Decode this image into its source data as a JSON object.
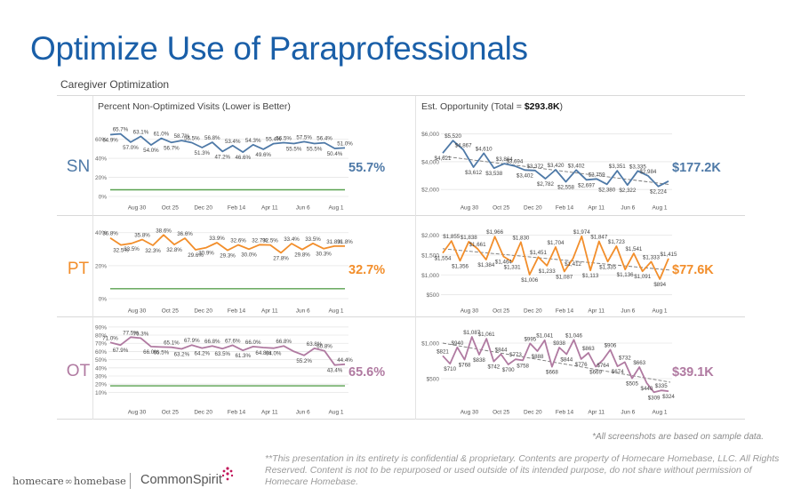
{
  "page": {
    "title": "Optimize Use of Paraprofessionals",
    "subtitle": "Caregiver Optimization",
    "footnote": "*All screenshots are based on sample data.",
    "disclaimer": "**This presentation in its entirety is confidential & proprietary. Contents are property of Homecare Homebase, LLC. All Rights Reserved. Content is not to be repurposed or used outside of its intended purpose, do not share without permission of Homecare Homebase.",
    "logo_left_a": "homecare",
    "logo_left_b": "homebase",
    "logo_right": "CommonSpirit"
  },
  "colors": {
    "SN": "#4e79a7",
    "PT": "#f28e2b",
    "OT": "#b07aa1",
    "target": "#59a14f",
    "grid": "#e6e6e6",
    "trend": "#777777"
  },
  "chart_data": [
    {
      "type": "line",
      "title": "Percent Non-Optimized Visits (Lower is Better)",
      "discipline": "SN",
      "summary": "55.7%",
      "ylim": [
        0,
        70
      ],
      "yticks": [
        "0%",
        "20%",
        "40%",
        "60%"
      ],
      "ytick_values": [
        0,
        20,
        40,
        60
      ],
      "xticks": [
        "Aug 30",
        "Oct 25",
        "Dec 20",
        "Feb 14",
        "Apr 11",
        "Jun 6",
        "Aug 1"
      ],
      "target": 7,
      "values": [
        64.9,
        65.7,
        57.0,
        63.1,
        54.0,
        61.0,
        56.7,
        58.7,
        56.5,
        51.3,
        56.8,
        47.2,
        53.4,
        46.6,
        54.3,
        49.6,
        55.4,
        56.5,
        55.5,
        57.5,
        55.5,
        56.4,
        50.4,
        51.0
      ],
      "labels": [
        "64.9%",
        "65.7%",
        "57.0%",
        "63.1%",
        "54.0%",
        "61.0%",
        "56.7%",
        "58.7%",
        "56.5%",
        "51.3%",
        "56.8%",
        "47.2%",
        "53.4%",
        "46.6%",
        "54.3%",
        "49.6%",
        "55.4%",
        "56.5%",
        "55.5%",
        "57.5%",
        "55.5%",
        "56.4%",
        "50.4%",
        "51.0%"
      ]
    },
    {
      "type": "line",
      "title": "",
      "discipline": "PT",
      "summary": "32.7%",
      "ylim": [
        0,
        42
      ],
      "yticks": [
        "0%",
        "20%",
        "40%"
      ],
      "ytick_values": [
        0,
        20,
        40
      ],
      "xticks": [
        "Aug 30",
        "Oct 25",
        "Dec 20",
        "Feb 14",
        "Apr 11",
        "Jun 6",
        "Aug 1"
      ],
      "target": 6,
      "values": [
        36.8,
        32.5,
        33.5,
        35.8,
        32.3,
        38.6,
        32.8,
        36.6,
        29.6,
        30.9,
        33.9,
        29.3,
        32.6,
        30.0,
        32.7,
        32.5,
        27.8,
        33.4,
        29.8,
        33.5,
        30.3,
        31.8,
        31.8
      ],
      "labels": [
        "36.8%",
        "32.5%",
        "33.5%",
        "35.8%",
        "32.3%",
        "38.6%",
        "32.8%",
        "36.6%",
        "29.6%",
        "30.9%",
        "33.9%",
        "29.3%",
        "32.6%",
        "30.0%",
        "32.7%",
        "32.5%",
        "27.8%",
        "33.4%",
        "29.8%",
        "33.5%",
        "30.3%",
        "31.8%",
        "31.8%"
      ]
    },
    {
      "type": "line",
      "title": "",
      "discipline": "OT",
      "summary": "65.6%",
      "ylim": [
        5,
        92
      ],
      "yticks": [
        "10%",
        "20%",
        "30%",
        "40%",
        "50%",
        "60%",
        "70%",
        "80%",
        "90%"
      ],
      "ytick_values": [
        10,
        20,
        30,
        40,
        50,
        60,
        70,
        80,
        90
      ],
      "xticks": [
        "Aug 30",
        "Oct 25",
        "Dec 20",
        "Feb 14",
        "Apr 11",
        "Jun 6",
        "Aug 1"
      ],
      "target": 18,
      "values": [
        71.0,
        67.9,
        77.5,
        76.3,
        66.0,
        65.5,
        65.1,
        63.2,
        67.9,
        64.2,
        66.8,
        63.5,
        67.6,
        61.3,
        66.0,
        64.8,
        64.0,
        66.8,
        60.0,
        55.2,
        63.8,
        60.8,
        43.4,
        44.4
      ],
      "labels": [
        "71.0%",
        "67.9%",
        "77.5%",
        "76.3%",
        "66.0%",
        "65.5%",
        "65.1%",
        "63.2%",
        "67.9%",
        "64.2%",
        "66.8%",
        "63.5%",
        "67.6%",
        "61.3%",
        "66.0%",
        "64.8%",
        "64.0%",
        "66.8%",
        "",
        "55.2%",
        "63.8%",
        "60.8%",
        "43.4%",
        "44.4%"
      ]
    },
    {
      "type": "line",
      "title_prefix": "Est. Opportunity (Total = ",
      "title_total": "$293.8K",
      "title_suffix": ")",
      "discipline": "SN",
      "summary": "$177.2K",
      "ylim": [
        1500,
        6300
      ],
      "yticks": [
        "$2,000",
        "$4,000",
        "$6,000"
      ],
      "ytick_values": [
        2000,
        4000,
        6000
      ],
      "xticks": [
        "Aug 30",
        "Oct 25",
        "Dec 20",
        "Feb 14",
        "Apr 11",
        "Jun 6",
        "Aug 1"
      ],
      "trend": [
        4400,
        2350
      ],
      "values": [
        4621,
        5520,
        4867,
        3612,
        4610,
        3538,
        3864,
        3694,
        3402,
        3372,
        2782,
        3420,
        2558,
        3402,
        2697,
        2759,
        2380,
        3351,
        2322,
        3335,
        2984,
        2224,
        2600
      ],
      "labels": [
        "$4,621",
        "$5,520",
        "$4,867",
        "$3,612",
        "$4,610",
        "$3,538",
        "$3,864",
        "$3,694",
        "$3,402",
        "$3,372",
        "$2,782",
        "$3,420",
        "$2,558",
        "$3,402",
        "$2,697",
        "$2,759",
        "$2,380",
        "$3,351",
        "$2,322",
        "$3,335",
        "$2,984",
        "$2,224",
        ""
      ]
    },
    {
      "type": "line",
      "discipline": "PT",
      "summary": "$77.6K",
      "ylim": [
        400,
        2150
      ],
      "yticks": [
        "$500",
        "$1,000",
        "$1,500",
        "$2,000"
      ],
      "ytick_values": [
        500,
        1000,
        1500,
        2000
      ],
      "xticks": [
        "Aug 30",
        "Oct 25",
        "Dec 20",
        "Feb 14",
        "Apr 11",
        "Jun 6",
        "Aug 1"
      ],
      "trend": [
        1660,
        1120
      ],
      "values": [
        1554,
        1855,
        1356,
        1838,
        1661,
        1384,
        1966,
        1464,
        1331,
        1830,
        1006,
        1451,
        1233,
        1704,
        1087,
        1412,
        1974,
        1113,
        1847,
        1335,
        1723,
        1136,
        1541,
        1091,
        1333,
        894,
        1415
      ],
      "labels": [
        "$1,554",
        "$1,855",
        "$1,356",
        "$1,838",
        "$1,661",
        "$1,384",
        "$1,966",
        "$1,464",
        "$1,331",
        "$1,830",
        "$1,006",
        "$1,451",
        "$1,233",
        "$1,704",
        "$1,087",
        "$1,412",
        "$1,974",
        "$1,113",
        "$1,847",
        "$1,335",
        "$1,723",
        "$1,136",
        "$1,541",
        "$1,091",
        "$1,333",
        "$894",
        "$1,415"
      ]
    },
    {
      "type": "line",
      "discipline": "OT",
      "summary": "$39.1K",
      "ylim": [
        250,
        1250
      ],
      "yticks": [
        "$500",
        "$1,000"
      ],
      "ytick_values": [
        500,
        1000
      ],
      "xticks": [
        "Aug 30",
        "Oct 25",
        "Dec 20",
        "Feb 14",
        "Apr 11",
        "Jun 6",
        "Aug 1"
      ],
      "trend": [
        1000,
        450
      ],
      "values": [
        821,
        710,
        940,
        768,
        1087,
        838,
        1061,
        742,
        844,
        700,
        773,
        758,
        995,
        888,
        1041,
        668,
        938,
        844,
        1046,
        776,
        863,
        669,
        764,
        906,
        674,
        732,
        505,
        663,
        440,
        309,
        335,
        324
      ],
      "labels": [
        "$821",
        "$710",
        "$940",
        "$768",
        "$1,087",
        "$838",
        "$1,061",
        "$742",
        "$844",
        "$700",
        "$773",
        "$758",
        "$995",
        "$888",
        "$1,041",
        "$668",
        "$938",
        "$844",
        "$1,046",
        "$776",
        "$863",
        "$669",
        "$764",
        "$906",
        "$674",
        "$732",
        "$505",
        "$663",
        "$440",
        "$309",
        "$335",
        "$324"
      ]
    }
  ]
}
